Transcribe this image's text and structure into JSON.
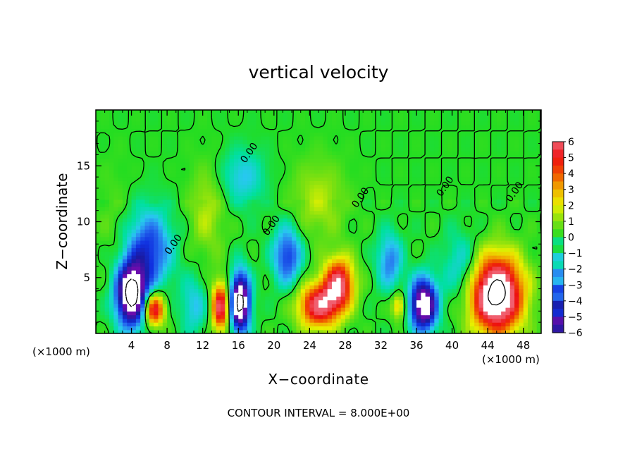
{
  "chart_data": {
    "type": "heatmap",
    "title": "vertical velocity",
    "xlabel": "X−coordinate",
    "ylabel": "Z−coordinate",
    "x_unit_label": "(×1000 m)",
    "x_ticks": [
      4,
      8,
      12,
      16,
      20,
      24,
      28,
      32,
      36,
      40,
      44,
      48
    ],
    "y_ticks": [
      5,
      10,
      15
    ],
    "xlim": [
      0,
      50
    ],
    "ylim": [
      0,
      20
    ],
    "grid": false,
    "colorbar": {
      "ticks": [
        6,
        5,
        4,
        3,
        2,
        1,
        0,
        -1,
        -2,
        -3,
        -4,
        -5,
        -6
      ],
      "tick_labels": [
        "6",
        "5",
        "4",
        "3",
        "2",
        "1",
        "0",
        "−1",
        "−2",
        "−3",
        "−4",
        "−5",
        "−6"
      ],
      "range": [
        -6,
        6
      ]
    },
    "contour_labels": [
      {
        "text": "0.00",
        "x": 17.5,
        "y": 16.0
      },
      {
        "text": "0.00",
        "x": 30.0,
        "y": 12.0
      },
      {
        "text": "0.00",
        "x": 39.5,
        "y": 13.0
      },
      {
        "text": "0.00",
        "x": 47.3,
        "y": 12.5
      },
      {
        "text": "0.00",
        "x": 20.0,
        "y": 9.5
      },
      {
        "text": "0.00",
        "x": 9.0,
        "y": 7.8
      }
    ],
    "features": [
      {
        "x": 4.0,
        "z": 3.5,
        "value": -9,
        "rx": 1.7,
        "rz": 2.8
      },
      {
        "x": 6.5,
        "z": 2.2,
        "value": 6,
        "rx": 1.2,
        "rz": 1.5
      },
      {
        "x": 14.0,
        "z": 2.4,
        "value": 6,
        "rx": 1.0,
        "rz": 2.2
      },
      {
        "x": 16.2,
        "z": 2.8,
        "value": -9,
        "rx": 1.1,
        "rz": 2.6
      },
      {
        "x": 25.0,
        "z": 2.5,
        "value": 6,
        "rx": 2.3,
        "rz": 2.0
      },
      {
        "x": 27.3,
        "z": 4.5,
        "value": 6,
        "rx": 1.7,
        "rz": 2.3
      },
      {
        "x": 36.8,
        "z": 2.6,
        "value": -8,
        "rx": 1.5,
        "rz": 2.3
      },
      {
        "x": 45.0,
        "z": 3.5,
        "value": 9,
        "rx": 2.9,
        "rz": 3.4
      },
      {
        "x": 6.0,
        "z": 7.5,
        "value": -4,
        "rx": 2.5,
        "rz": 3.5
      },
      {
        "x": 21.5,
        "z": 7.0,
        "value": -4,
        "rx": 1.6,
        "rz": 2.6
      },
      {
        "x": 33.0,
        "z": 6.5,
        "value": -3,
        "rx": 1.4,
        "rz": 2.5
      },
      {
        "x": 16.5,
        "z": 14.0,
        "value": -2,
        "rx": 2.5,
        "rz": 2.5
      },
      {
        "x": 25.0,
        "z": 12.0,
        "value": 1.5,
        "rx": 3.0,
        "rz": 3.5
      },
      {
        "x": 12.5,
        "z": 11.0,
        "value": 1.5,
        "rx": 2.0,
        "rz": 4.0
      },
      {
        "x": 11.0,
        "z": 2.5,
        "value": -2,
        "rx": 1.5,
        "rz": 2.5
      },
      {
        "x": 34.0,
        "z": 2.5,
        "value": 3,
        "rx": 0.8,
        "rz": 1.2
      },
      {
        "x": 41.0,
        "z": 6.0,
        "value": -2,
        "rx": 2.0,
        "rz": 3.0
      },
      {
        "x": 2.0,
        "z": 10.0,
        "value": 0.5,
        "rx": 2.0,
        "rz": 5.0
      }
    ]
  },
  "footer": {
    "contour_interval": "CONTOUR INTERVAL =  8.000E+00"
  }
}
